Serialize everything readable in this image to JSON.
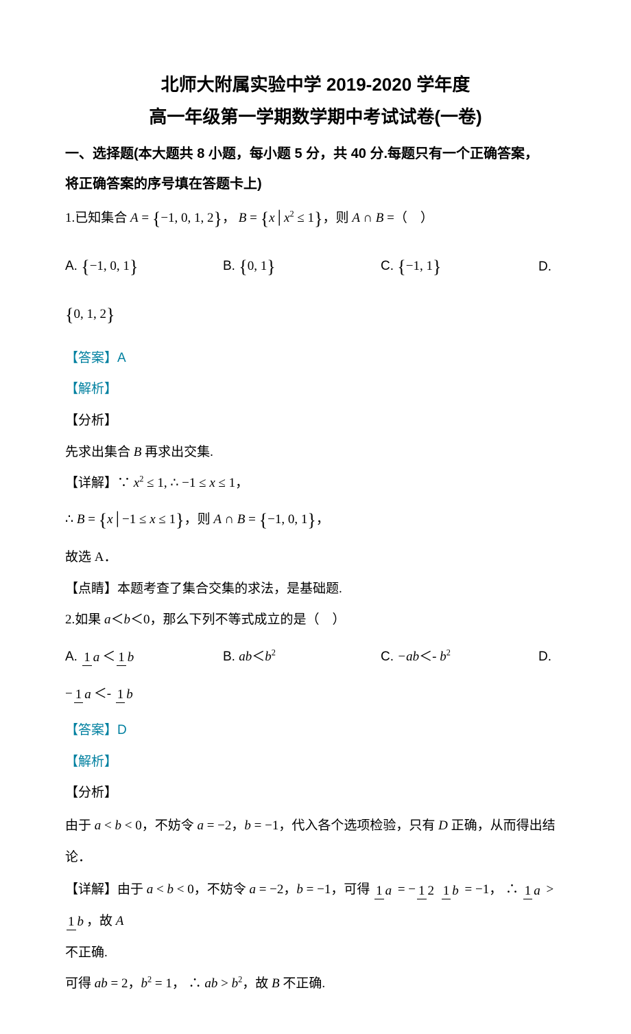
{
  "colors": {
    "text": "#000000",
    "background": "#ffffff",
    "answer_color": "#0080a0"
  },
  "title_line1": "北师大附属实验中学 2019-2020 学年度",
  "title_line2": "高一年级第一学期数学期中考试试卷(一卷)",
  "section_header1": "一、选择题(本大题共 8 小题，每小题 5 分，共 40 分.每题只有一个正确答案，",
  "section_header2": "将正确答案的序号填在答题卡上)",
  "q1": {
    "prefix": "1.已知集合 ",
    "setA": "A = {−1, 0, 1, 2}，",
    "setB_left": "B = ",
    "setB_cond": "x | x",
    "setB_cond_tail": " ≤ 1",
    "mid": "，则 ",
    "A_int_B": "A ∩ B",
    "tail": " =（　）",
    "choices": {
      "A_label": "A. ",
      "A": "{−1, 0, 1}",
      "B_label": "B. ",
      "B": "{0, 1}",
      "C_label": "C. ",
      "C": "{−1, 1}",
      "D_label": "D.",
      "D": "{0, 1, 2}"
    },
    "answer_label": "【答案】",
    "answer": "A",
    "jiexi": "【解析】",
    "fenxi": "【分析】",
    "fenxi_text": "先求出集合 B 再求出交集.",
    "detail_label": "【详解】",
    "detail_1_pre": "∵ ",
    "detail_1_var": "x",
    "detail_1_tail": " ≤ 1, ∴ −1 ≤ ",
    "detail_1_x": "x",
    "detail_1_end": " ≤ 1，",
    "detail_2_pre": "∴ B = ",
    "detail_2_cond": "x | −1 ≤ x ≤ 1",
    "detail_2_mid": "，则 ",
    "detail_2_AB": "A ∩ B",
    "detail_2_eq": " = {−1, 0, 1}，",
    "detail_3": "故选 A．",
    "dianping_label": "【点睛】",
    "dianping": "本题考查了集合交集的求法，是基础题."
  },
  "q2": {
    "prefix": "2.如果 ",
    "cond": "a＜b＜0",
    "mid": "，那么下列不等式成立的是（　）",
    "choices": {
      "A_label": "A. ",
      "A_lt": " ＜ ",
      "B_label": "B. ",
      "B_lhs": "ab",
      "B_lt": "＜",
      "B_rhs": "b",
      "C_label": "C. ",
      "C_lhs": "−ab",
      "C_lt": "＜",
      "C_neg": "- ",
      "C_rhs": "b",
      "D_label": "D.",
      "D_lt": "＜"
    },
    "answer_label": "【答案】",
    "answer": "D",
    "jiexi": "【解析】",
    "fenxi": "【分析】",
    "fenxi_text_pre": "由于 ",
    "fenxi_cond": "a < b < 0",
    "fenxi_mid": "，不妨令 ",
    "fenxi_a": "a = −2，",
    "fenxi_b": "b = −1",
    "fenxi_tail": "，代入各个选项检验，只有 D 正确，从而得出结",
    "fenxi_tail2": "论．",
    "detail_label": "【详解】",
    "detail_pre": "由于 ",
    "detail_cond": "a < b < 0",
    "detail_mid": "，不妨令 ",
    "detail_a": "a = −2，",
    "detail_b": "b = −1",
    "detail_get": "，可得 ",
    "detail_eq1_lhs": " = ",
    "detail_eq1_rhs": " ",
    "detail_eq2_rhs": " = −1",
    "detail_so": "，∴ ",
    "detail_gt": " > ",
    "detail_conc": "，故 A",
    "detail_wrong": "不正确.",
    "ab_line_pre": "可得 ",
    "ab_eq": "ab = 2",
    "ab_comma": "，",
    "b2_eq": "b",
    "b2_val": " = 1",
    "ab_so": "， ∴ ",
    "ab_gt": "ab > b",
    "ab_conc": "，故 B 不正确."
  }
}
